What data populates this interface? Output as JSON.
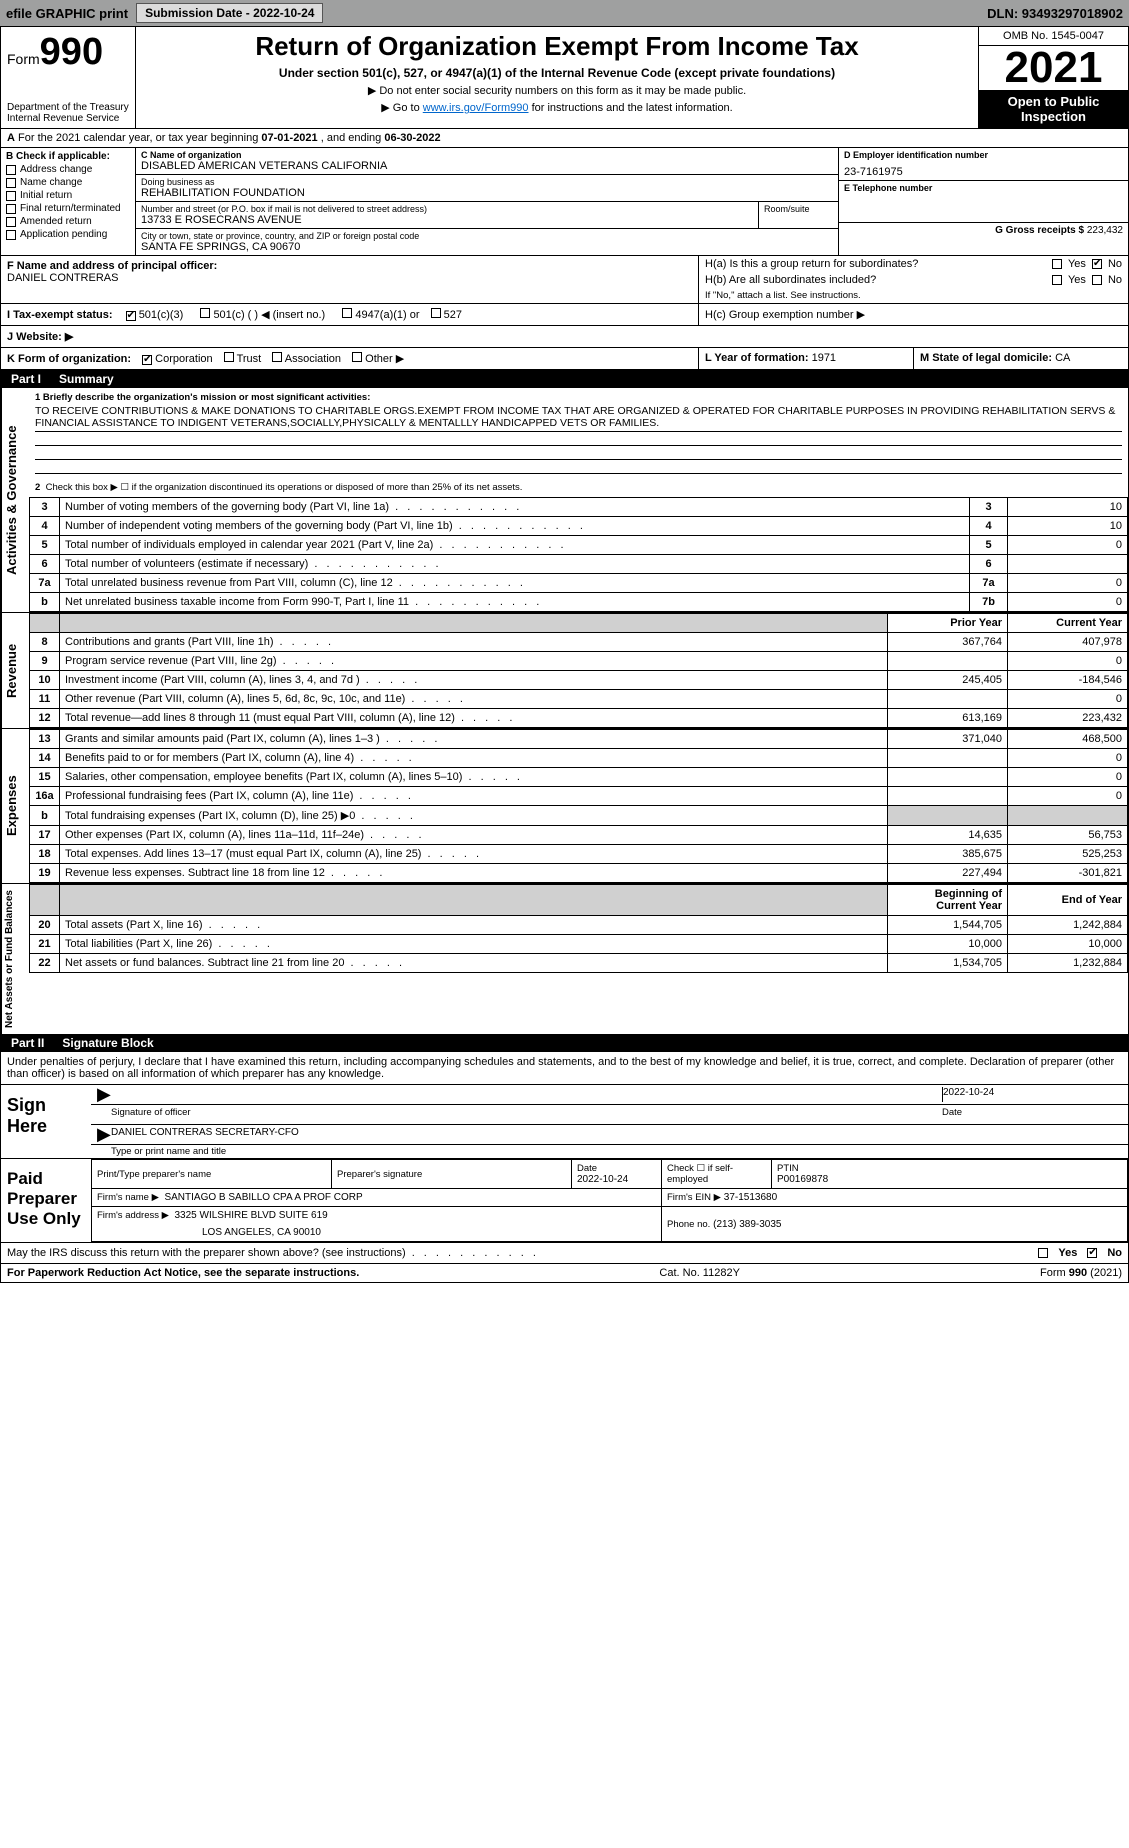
{
  "topbar": {
    "efile": "efile GRAPHIC print",
    "submission": "Submission Date - 2022-10-24",
    "dln": "DLN: 93493297018902"
  },
  "header": {
    "form_label": "Form",
    "form_num": "990",
    "title": "Return of Organization Exempt From Income Tax",
    "subtitle": "Under section 501(c), 527, or 4947(a)(1) of the Internal Revenue Code (except private foundations)",
    "note1": "▶ Do not enter social security numbers on this form as it may be made public.",
    "note2_pre": "▶ Go to ",
    "note2_link": "www.irs.gov/Form990",
    "note2_post": " for instructions and the latest information.",
    "dept": "Department of the Treasury",
    "irs": "Internal Revenue Service",
    "omb": "OMB No. 1545-0047",
    "year": "2021",
    "open": "Open to Public Inspection"
  },
  "periodA": {
    "text_pre": "For the 2021 calendar year, or tax year beginning ",
    "begin": "07-01-2021",
    "text_mid": " , and ending ",
    "end": "06-30-2022"
  },
  "boxB": {
    "label": "B Check if applicable:",
    "items": [
      "Address change",
      "Name change",
      "Initial return",
      "Final return/terminated",
      "Amended return",
      "Application pending"
    ]
  },
  "boxC": {
    "name_label": "C Name of organization",
    "name": "DISABLED AMERICAN VETERANS CALIFORNIA",
    "dba_label": "Doing business as",
    "dba": "REHABILITATION FOUNDATION",
    "street_label": "Number and street (or P.O. box if mail is not delivered to street address)",
    "room_label": "Room/suite",
    "street": "13733 E ROSECRANS AVENUE",
    "city_label": "City or town, state or province, country, and ZIP or foreign postal code",
    "city": "SANTA FE SPRINGS, CA  90670"
  },
  "boxD": {
    "label": "D Employer identification number",
    "val": "23-7161975"
  },
  "boxE": {
    "label": "E Telephone number",
    "val": ""
  },
  "boxG": {
    "label": "G Gross receipts $",
    "val": "223,432"
  },
  "boxF": {
    "label": "F Name and address of principal officer:",
    "name": "DANIEL CONTRERAS"
  },
  "boxH": {
    "a": "H(a)  Is this a group return for subordinates?",
    "b": "H(b)  Are all subordinates included?",
    "b_note": "If \"No,\" attach a list. See instructions.",
    "c": "H(c)  Group exemption number ▶",
    "yes": "Yes",
    "no": "No"
  },
  "boxI": {
    "label": "I  Tax-exempt status:",
    "opts": [
      "501(c)(3)",
      "501(c) (  ) ◀ (insert no.)",
      "4947(a)(1) or",
      "527"
    ]
  },
  "boxJ": {
    "label": "J  Website: ▶",
    "val": ""
  },
  "boxK": {
    "label": "K Form of organization:",
    "opts": [
      "Corporation",
      "Trust",
      "Association",
      "Other ▶"
    ]
  },
  "boxL": {
    "label": "L Year of formation:",
    "val": "1971"
  },
  "boxM": {
    "label": "M State of legal domicile:",
    "val": "CA"
  },
  "part1": {
    "num": "Part I",
    "title": "Summary"
  },
  "mission": {
    "label": "1  Briefly describe the organization's mission or most significant activities:",
    "text": "TO RECEIVE CONTRIBUTIONS & MAKE DONATIONS TO CHARITABLE ORGS.EXEMPT FROM INCOME TAX THAT ARE ORGANIZED & OPERATED FOR CHARITABLE PURPOSES IN PROVIDING REHABILITATION SERVS & FINANCIAL ASSISTANCE TO INDIGENT VETERANS,SOCIALLY,PHYSICALLY & MENTALLLY HANDICAPPED VETS OR FAMILIES."
  },
  "govLines": {
    "l2": "Check this box ▶ ☐ if the organization discontinued its operations or disposed of more than 25% of its net assets.",
    "rows": [
      {
        "n": "3",
        "d": "Number of voting members of the governing body (Part VI, line 1a)",
        "box": "3",
        "v": "10"
      },
      {
        "n": "4",
        "d": "Number of independent voting members of the governing body (Part VI, line 1b)",
        "box": "4",
        "v": "10"
      },
      {
        "n": "5",
        "d": "Total number of individuals employed in calendar year 2021 (Part V, line 2a)",
        "box": "5",
        "v": "0"
      },
      {
        "n": "6",
        "d": "Total number of volunteers (estimate if necessary)",
        "box": "6",
        "v": ""
      },
      {
        "n": "7a",
        "d": "Total unrelated business revenue from Part VIII, column (C), line 12",
        "box": "7a",
        "v": "0"
      },
      {
        "n": "b",
        "d": "Net unrelated business taxable income from Form 990-T, Part I, line 11",
        "box": "7b",
        "v": "0"
      }
    ]
  },
  "finHeaders": {
    "prior": "Prior Year",
    "current": "Current Year",
    "bcy": "Beginning of Current Year",
    "eoy": "End of Year"
  },
  "revenue": [
    {
      "n": "8",
      "d": "Contributions and grants (Part VIII, line 1h)",
      "p": "367,764",
      "c": "407,978"
    },
    {
      "n": "9",
      "d": "Program service revenue (Part VIII, line 2g)",
      "p": "",
      "c": "0"
    },
    {
      "n": "10",
      "d": "Investment income (Part VIII, column (A), lines 3, 4, and 7d )",
      "p": "245,405",
      "c": "-184,546"
    },
    {
      "n": "11",
      "d": "Other revenue (Part VIII, column (A), lines 5, 6d, 8c, 9c, 10c, and 11e)",
      "p": "",
      "c": "0"
    },
    {
      "n": "12",
      "d": "Total revenue—add lines 8 through 11 (must equal Part VIII, column (A), line 12)",
      "p": "613,169",
      "c": "223,432"
    }
  ],
  "expenses": [
    {
      "n": "13",
      "d": "Grants and similar amounts paid (Part IX, column (A), lines 1–3 )",
      "p": "371,040",
      "c": "468,500"
    },
    {
      "n": "14",
      "d": "Benefits paid to or for members (Part IX, column (A), line 4)",
      "p": "",
      "c": "0"
    },
    {
      "n": "15",
      "d": "Salaries, other compensation, employee benefits (Part IX, column (A), lines 5–10)",
      "p": "",
      "c": "0"
    },
    {
      "n": "16a",
      "d": "Professional fundraising fees (Part IX, column (A), line 11e)",
      "p": "",
      "c": "0"
    },
    {
      "n": "b",
      "d": "Total fundraising expenses (Part IX, column (D), line 25) ▶0",
      "p": "grey",
      "c": "grey"
    },
    {
      "n": "17",
      "d": "Other expenses (Part IX, column (A), lines 11a–11d, 11f–24e)",
      "p": "14,635",
      "c": "56,753"
    },
    {
      "n": "18",
      "d": "Total expenses. Add lines 13–17 (must equal Part IX, column (A), line 25)",
      "p": "385,675",
      "c": "525,253"
    },
    {
      "n": "19",
      "d": "Revenue less expenses. Subtract line 18 from line 12",
      "p": "227,494",
      "c": "-301,821"
    }
  ],
  "netassets": [
    {
      "n": "20",
      "d": "Total assets (Part X, line 16)",
      "p": "1,544,705",
      "c": "1,242,884"
    },
    {
      "n": "21",
      "d": "Total liabilities (Part X, line 26)",
      "p": "10,000",
      "c": "10,000"
    },
    {
      "n": "22",
      "d": "Net assets or fund balances. Subtract line 21 from line 20",
      "p": "1,534,705",
      "c": "1,232,884"
    }
  ],
  "sideLabels": {
    "gov": "Activities & Governance",
    "rev": "Revenue",
    "exp": "Expenses",
    "na": "Net Assets or Fund Balances"
  },
  "part2": {
    "num": "Part II",
    "title": "Signature Block"
  },
  "penalty": "Under penalties of perjury, I declare that I have examined this return, including accompanying schedules and statements, and to the best of my knowledge and belief, it is true, correct, and complete. Declaration of preparer (other than officer) is based on all information of which preparer has any knowledge.",
  "sign": {
    "here": "Sign Here",
    "sig_officer": "Signature of officer",
    "date": "Date",
    "sig_date": "2022-10-24",
    "name": "DANIEL CONTRERAS  SECRETARY-CFO",
    "name_label": "Type or print name and title"
  },
  "paid": {
    "label": "Paid Preparer Use Only",
    "h1": "Print/Type preparer's name",
    "h2": "Preparer's signature",
    "h3": "Date",
    "h4": "Check ☐ if self-employed",
    "h5": "PTIN",
    "date": "2022-10-24",
    "ptin": "P00169878",
    "firm_label": "Firm's name   ▶",
    "firm": "SANTIAGO B SABILLO CPA A PROF CORP",
    "ein_label": "Firm's EIN ▶",
    "ein": "37-1513680",
    "addr_label": "Firm's address ▶",
    "addr1": "3325 WILSHIRE BLVD SUITE 619",
    "addr2": "LOS ANGELES, CA  90010",
    "phone_label": "Phone no.",
    "phone": "(213) 389-3035"
  },
  "discuss": "May the IRS discuss this return with the preparer shown above? (see instructions)",
  "footer": {
    "pra": "For Paperwork Reduction Act Notice, see the separate instructions.",
    "cat": "Cat. No. 11282Y",
    "form": "Form 990 (2021)"
  }
}
